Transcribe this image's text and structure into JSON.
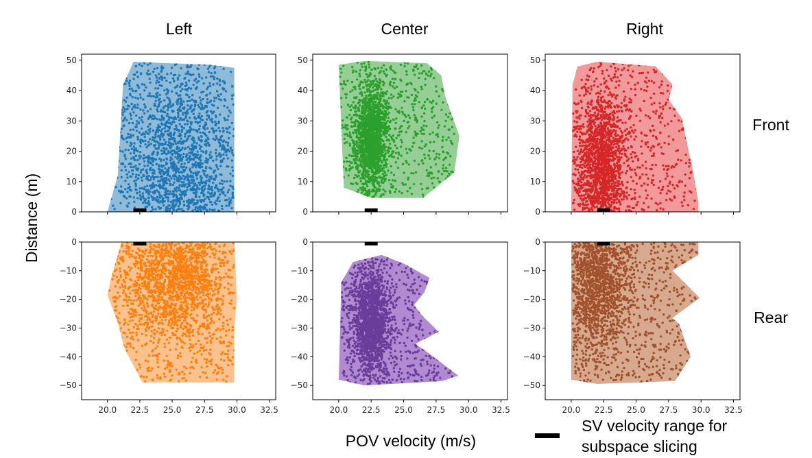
{
  "chart_data": {
    "type": "scatter",
    "column_titles": [
      "Left",
      "Center",
      "Right"
    ],
    "row_titles": [
      "Front",
      "Rear"
    ],
    "xlabel": "POV velocity (m/s)",
    "ylabel": "Distance (m)",
    "xlim": [
      18,
      33
    ],
    "xticks": [
      "20.0",
      "22.5",
      "25.0",
      "27.5",
      "30.0",
      "32.5"
    ],
    "xtick_values": [
      20,
      22.5,
      25,
      27.5,
      30,
      32.5
    ],
    "legend": {
      "label": "SV velocity range for subspace slicing",
      "sv_range": [
        22.0,
        23.0
      ],
      "placement": "bottom-right"
    },
    "panels": [
      {
        "id": "front-left",
        "row": "Front",
        "col": "Left",
        "color": "#1f77b4",
        "fill": "#8fbbd9",
        "ylim": [
          0,
          52
        ],
        "yticks": [
          "0",
          "10",
          "20",
          "30",
          "40",
          "50"
        ],
        "ytick_values": [
          0,
          10,
          20,
          30,
          40,
          50
        ],
        "hull": [
          [
            20,
            0
          ],
          [
            20.8,
            12
          ],
          [
            21.2,
            42
          ],
          [
            21.6,
            45.5
          ],
          [
            22,
            49.5
          ],
          [
            28,
            48.5
          ],
          [
            29.8,
            47.5
          ],
          [
            29.8,
            0
          ]
        ],
        "density": {
          "x_range": [
            20.2,
            29.8
          ],
          "y_range": [
            0.2,
            49
          ],
          "x_mode": 25.5,
          "y_mode": 14,
          "n": 2200,
          "x_spread": 3.8,
          "y_spread": 22
        }
      },
      {
        "id": "front-center",
        "row": "Front",
        "col": "Center",
        "color": "#2ca02c",
        "fill": "#95cf95",
        "ylim": [
          0,
          52
        ],
        "yticks": [
          "0",
          "10",
          "20",
          "30",
          "40",
          "50"
        ],
        "ytick_values": [
          0,
          10,
          20,
          30,
          40,
          50
        ],
        "hull": [
          [
            20.4,
            8
          ],
          [
            20.3,
            18
          ],
          [
            20.0,
            48.5
          ],
          [
            22.0,
            49.8
          ],
          [
            26.8,
            49
          ],
          [
            27.9,
            45
          ],
          [
            28.2,
            38
          ],
          [
            29.3,
            25
          ],
          [
            28.9,
            13
          ],
          [
            26.5,
            4.6
          ],
          [
            22.5,
            4.6
          ]
        ],
        "density": {
          "x_range": [
            20.1,
            28.9
          ],
          "y_range": [
            4.8,
            49.6
          ],
          "x_mode": 22.5,
          "y_mode": 25,
          "n": 2200,
          "x_spread": 1.1,
          "y_spread": 11
        }
      },
      {
        "id": "front-right",
        "row": "Front",
        "col": "Right",
        "color": "#d62728",
        "fill": "#f29a9b",
        "ylim": [
          0,
          52
        ],
        "yticks": [
          "0",
          "10",
          "20",
          "30",
          "40",
          "50"
        ],
        "ytick_values": [
          0,
          10,
          20,
          30,
          40,
          50
        ],
        "hull": [
          [
            20,
            0
          ],
          [
            20.1,
            42
          ],
          [
            20.5,
            48
          ],
          [
            22,
            49.5
          ],
          [
            26.5,
            48
          ],
          [
            27.8,
            42
          ],
          [
            27.5,
            37
          ],
          [
            28.5,
            31
          ],
          [
            29.4,
            13
          ],
          [
            29.8,
            3
          ],
          [
            29.8,
            0
          ]
        ],
        "density": {
          "x_range": [
            20.1,
            29.7
          ],
          "y_range": [
            0.2,
            49.3
          ],
          "x_mode": 22.3,
          "y_mode": 15,
          "n": 2200,
          "x_spread": 1.7,
          "y_spread": 14
        }
      },
      {
        "id": "rear-left",
        "row": "Rear",
        "col": "Left",
        "color": "#ff7f0e",
        "fill": "#fcc28d",
        "ylim": [
          -55,
          0
        ],
        "yticks": [
          "0",
          "−10",
          "−20",
          "−30",
          "−40",
          "−50"
        ],
        "ytick_values": [
          0,
          -10,
          -20,
          -30,
          -40,
          -50
        ],
        "hull": [
          [
            21.1,
            0
          ],
          [
            20.3,
            -12
          ],
          [
            20,
            -18.5
          ],
          [
            20.8,
            -28
          ],
          [
            21.3,
            -37
          ],
          [
            22,
            -43
          ],
          [
            22.7,
            -49
          ],
          [
            29.8,
            -49
          ],
          [
            29.8,
            -30
          ],
          [
            30,
            -20
          ],
          [
            29.8,
            0
          ]
        ],
        "density": {
          "x_range": [
            20.1,
            29.8
          ],
          "y_range": [
            -48.8,
            -0.2
          ],
          "x_mode": 25.0,
          "y_mode": -12,
          "n": 2200,
          "x_spread": 3.5,
          "y_spread": 14
        }
      },
      {
        "id": "rear-center",
        "row": "Rear",
        "col": "Center",
        "color": "#6a3d9a",
        "fill": "#b18bd1",
        "ylim": [
          -55,
          0
        ],
        "yticks": [
          "0",
          "−10",
          "−20",
          "−30",
          "−40",
          "−50"
        ],
        "ytick_values": [
          0,
          -10,
          -20,
          -30,
          -40,
          -50
        ],
        "hull": [
          [
            21.1,
            -7
          ],
          [
            20.2,
            -14
          ],
          [
            20,
            -48
          ],
          [
            22,
            -50
          ],
          [
            28,
            -48.5
          ],
          [
            29.2,
            -46.6
          ],
          [
            27,
            -39
          ],
          [
            25.9,
            -35.5
          ],
          [
            27.7,
            -31.3
          ],
          [
            26.5,
            -26
          ],
          [
            25.8,
            -22
          ],
          [
            26.6,
            -17.5
          ],
          [
            27.0,
            -12.5
          ],
          [
            25,
            -7.5
          ],
          [
            23.3,
            -4.5
          ]
        ],
        "density": {
          "x_range": [
            20.2,
            28.8
          ],
          "y_range": [
            -49.5,
            -5.3
          ],
          "x_mode": 22.5,
          "y_mode": -28,
          "n": 2200,
          "x_spread": 1.3,
          "y_spread": 12
        }
      },
      {
        "id": "rear-right",
        "row": "Rear",
        "col": "Right",
        "color": "#a0522d",
        "fill": "#d7aa8f",
        "ylim": [
          -55,
          0
        ],
        "yticks": [
          "0",
          "−10",
          "−20",
          "−30",
          "−40",
          "−50"
        ],
        "ytick_values": [
          0,
          -10,
          -20,
          -30,
          -40,
          -50
        ],
        "hull": [
          [
            20,
            0
          ],
          [
            20,
            -48
          ],
          [
            22,
            -49.5
          ],
          [
            28,
            -48.5
          ],
          [
            29.2,
            -40
          ],
          [
            28.3,
            -28.5
          ],
          [
            27.8,
            -26.5
          ],
          [
            29.9,
            -19.5
          ],
          [
            27.8,
            -10
          ],
          [
            29.8,
            -4.5
          ],
          [
            29.8,
            0
          ]
        ],
        "density": {
          "x_range": [
            20.1,
            29.7
          ],
          "y_range": [
            -49,
            -0.2
          ],
          "x_mode": 22.0,
          "y_mode": -14,
          "n": 2200,
          "x_spread": 2.5,
          "y_spread": 15
        }
      }
    ]
  }
}
